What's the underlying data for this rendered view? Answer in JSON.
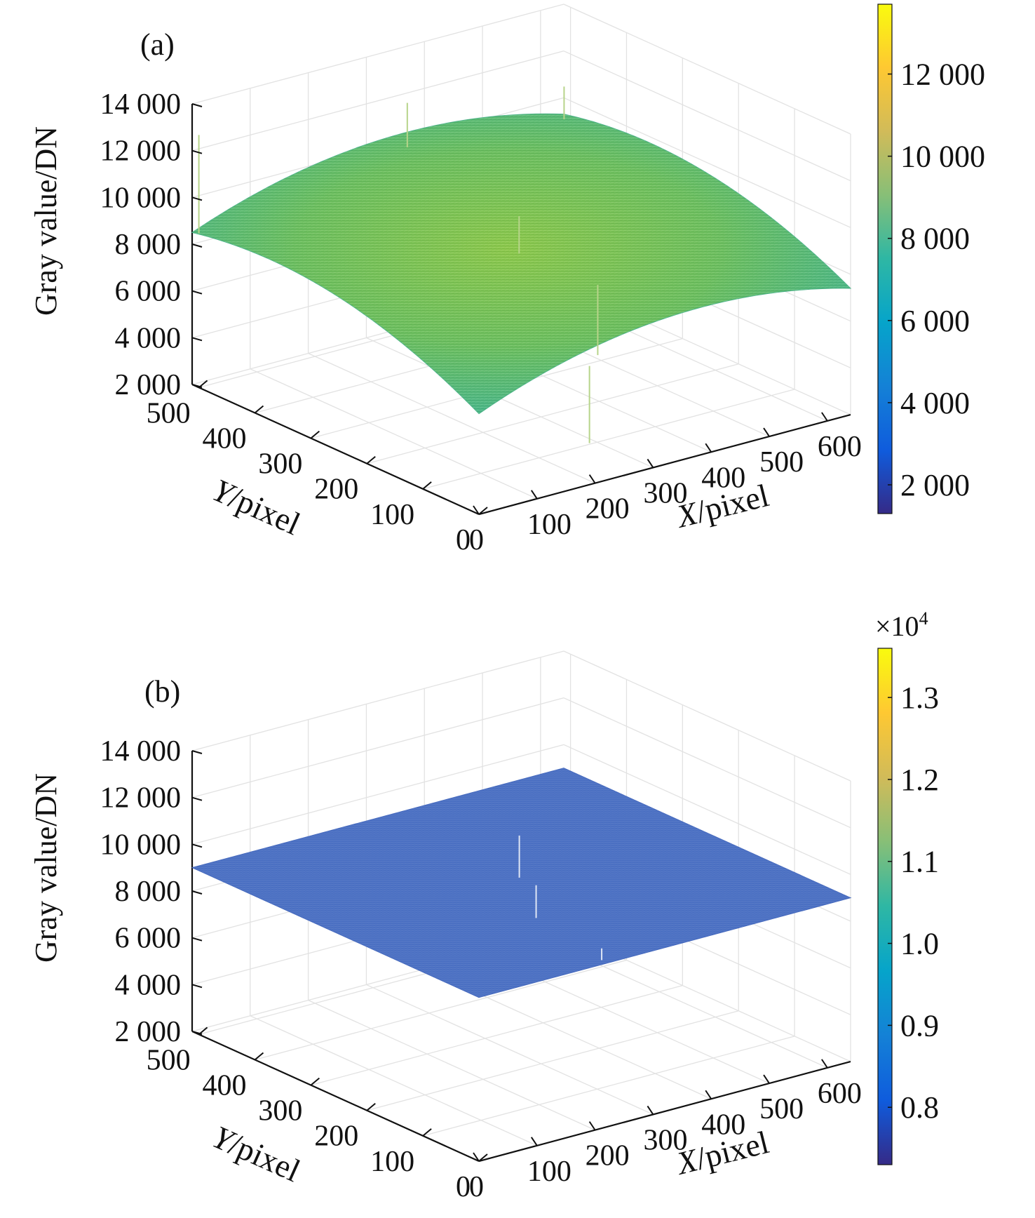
{
  "chart_data": [
    {
      "type": "surface",
      "panel_label": "(a)",
      "zlabel": "Gray value/DN",
      "xlabel_italic": "X",
      "xlabel_rest": "/pixel",
      "ylabel_italic": "Y",
      "ylabel_rest": "/pixel",
      "x_ticks": [
        "0",
        "100",
        "200",
        "300",
        "400",
        "500",
        "600"
      ],
      "y_ticks": [
        "0",
        "100",
        "200",
        "300",
        "400",
        "500"
      ],
      "z_ticks": [
        "2 000",
        "4 000",
        "6 000",
        "8 000",
        "10 000",
        "12 000",
        "14 000"
      ],
      "xlim": [
        0,
        640
      ],
      "ylim": [
        0,
        512
      ],
      "zlim": [
        2000,
        14000
      ],
      "surface": {
        "description_values": "vignetted flat field, peak near image center",
        "corner_values": {
          "x0_y512": 8500,
          "x640_y0": 7400,
          "x0_y0": 6300,
          "x640_y512": 9300
        },
        "center_value": 10300
      },
      "colorbar": {
        "ticks": [
          "2 000",
          "4 000",
          "6 000",
          "8 000",
          "10 000",
          "12 000"
        ],
        "range": [
          1300,
          13700
        ],
        "multiplier": ""
      }
    },
    {
      "type": "surface",
      "panel_label": "(b)",
      "zlabel": "Gray value/DN",
      "xlabel_italic": "X",
      "xlabel_rest": "/pixel",
      "ylabel_italic": "Y",
      "ylabel_rest": "/pixel",
      "x_ticks": [
        "0",
        "100",
        "200",
        "300",
        "400",
        "500",
        "600"
      ],
      "y_ticks": [
        "0",
        "100",
        "200",
        "300",
        "400",
        "500"
      ],
      "z_ticks": [
        "2 000",
        "4 000",
        "6 000",
        "8 000",
        "10 000",
        "12 000",
        "14 000"
      ],
      "xlim": [
        0,
        640
      ],
      "ylim": [
        0,
        512
      ],
      "zlim": [
        2000,
        14000
      ],
      "surface": {
        "description_values": "corrected flat field, nearly constant",
        "corner_values": {
          "x0_y512": 9000,
          "x640_y0": 9000,
          "x0_y0": 9000,
          "x640_y512": 9000
        },
        "center_value": 9000
      },
      "colorbar": {
        "ticks": [
          "0.8",
          "0.9",
          "1.0",
          "1.1",
          "1.2",
          "1.3"
        ],
        "range": [
          0.73,
          1.36
        ],
        "multiplier": "×10",
        "multiplier_exp": "4"
      }
    }
  ]
}
